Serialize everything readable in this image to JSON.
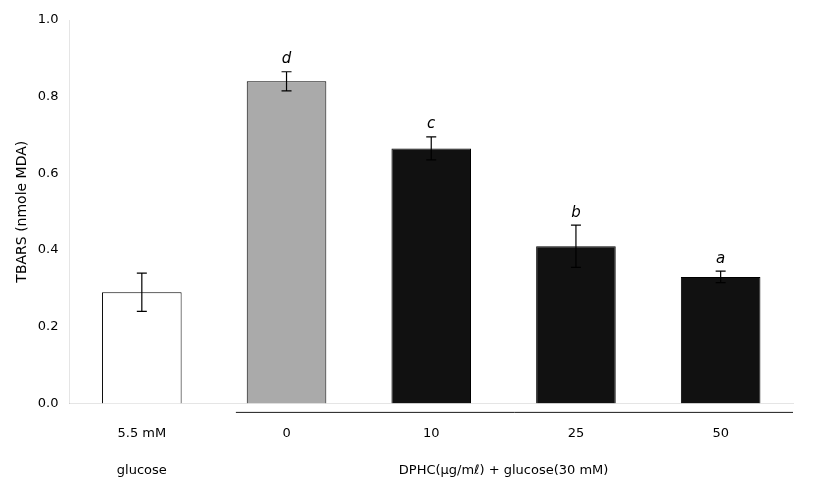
{
  "chart_data": {
    "type": "bar",
    "ylabel": "TBARS (nmole MDA)",
    "categories": [
      "5.5 mM",
      "0",
      "10",
      "25",
      "50"
    ],
    "values": [
      0.29,
      0.84,
      0.665,
      0.41,
      0.33
    ],
    "errors": [
      0.05,
      0.025,
      0.03,
      0.055,
      0.015
    ],
    "colors": [
      "#ffffff",
      "#aaaaaa",
      "#111111",
      "#111111",
      "#111111"
    ],
    "bar_labels": [
      null,
      "d",
      "c",
      "b",
      "a"
    ],
    "annotations": [
      "glucose"
    ],
    "xlabel": "DPHC(μg/mℓ) + glucose(30 mM)",
    "ylim": [
      0.0,
      1.0
    ],
    "yticks": [
      {
        "value": 0.0,
        "label": "0.0"
      },
      0.2,
      0.4,
      0.6,
      0.8,
      {
        "value": 1.0,
        "label": "1.0"
      }
    ],
    "grid": false
  }
}
